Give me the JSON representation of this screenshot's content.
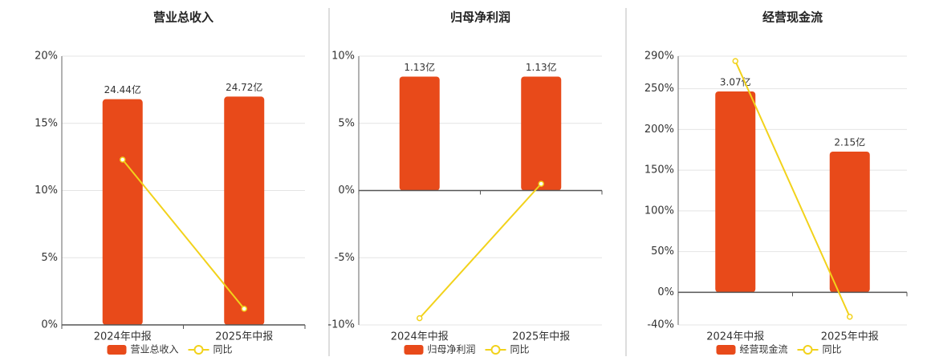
{
  "chart_data": [
    {
      "type": "bar",
      "title": "营业总收入",
      "categories": [
        "2024年中报",
        "2025年中报"
      ],
      "series": [
        {
          "name": "营业总收入",
          "color": "#e84a1a",
          "axis": "y2",
          "values": [
            24.44,
            24.72
          ],
          "value_labels": [
            "24.44亿",
            "24.72亿"
          ]
        },
        {
          "name": "同比",
          "color": "#f2d21b",
          "type": "line",
          "values": [
            12.3,
            1.2
          ]
        }
      ],
      "ylim": [
        0,
        20
      ],
      "yticks": [
        {
          "value": 0,
          "label": "0%"
        },
        {
          "value": 5,
          "label": "5%"
        },
        {
          "value": 10,
          "label": "10%"
        },
        {
          "value": 15,
          "label": "15%"
        },
        {
          "value": 20,
          "label": "20%"
        }
      ],
      "y2lim": [
        0,
        29.1
      ],
      "grid": true,
      "legend": "bottom"
    },
    {
      "type": "bar",
      "title": "归母净利润",
      "categories": [
        "2024年中报",
        "2025年中报"
      ],
      "series": [
        {
          "name": "归母净利润",
          "color": "#e84a1a",
          "axis": "y2",
          "values": [
            1.13,
            1.13
          ],
          "value_labels": [
            "1.13亿",
            "1.13亿"
          ]
        },
        {
          "name": "同比",
          "color": "#f2d21b",
          "type": "line",
          "values": [
            -9.5,
            0.5
          ]
        }
      ],
      "ylim": [
        -10,
        10
      ],
      "yticks": [
        {
          "value": -10,
          "label": "-10%"
        },
        {
          "value": -5,
          "label": "-5%"
        },
        {
          "value": 0,
          "label": "0%"
        },
        {
          "value": 5,
          "label": "5%"
        },
        {
          "value": 10,
          "label": "10%"
        }
      ],
      "y2lim": [
        -1.333,
        1.333
      ],
      "grid": true,
      "legend": "bottom"
    },
    {
      "type": "bar",
      "title": "经营现金流",
      "categories": [
        "2024年中报",
        "2025年中报"
      ],
      "series": [
        {
          "name": "经营现金流",
          "color": "#e84a1a",
          "axis": "y2",
          "values": [
            3.07,
            2.15
          ],
          "value_labels": [
            "3.07亿",
            "2.15亿"
          ]
        },
        {
          "name": "同比",
          "color": "#f2d21b",
          "type": "line",
          "values": [
            284,
            -30
          ]
        }
      ],
      "ylim": [
        -40,
        290
      ],
      "yticks": [
        {
          "value": -40,
          "label": "-40%"
        },
        {
          "value": 0,
          "label": "0%"
        },
        {
          "value": 50,
          "label": "50%"
        },
        {
          "value": 100,
          "label": "100%"
        },
        {
          "value": 150,
          "label": "150%"
        },
        {
          "value": 200,
          "label": "200%"
        },
        {
          "value": 250,
          "label": "250%"
        },
        {
          "value": 290,
          "label": "290%"
        }
      ],
      "y2lim": [
        -0.5,
        3.61
      ],
      "grid": true,
      "legend": "bottom"
    }
  ]
}
